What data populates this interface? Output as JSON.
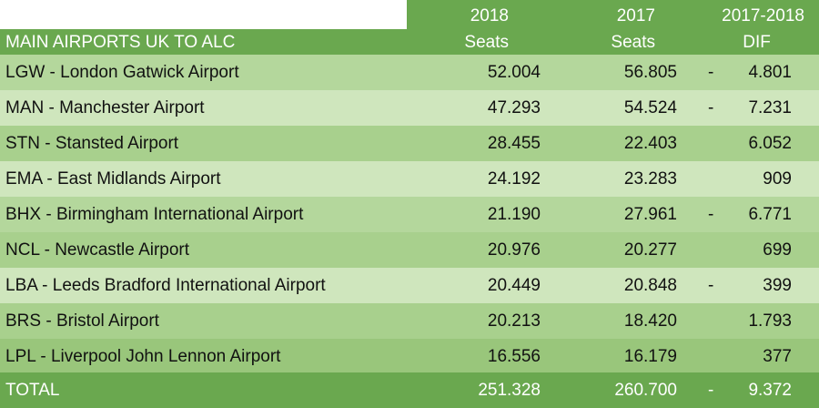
{
  "header": {
    "title": "MAIN AIRPORTS UK TO ALC",
    "col_2018": [
      "2018",
      "Seats"
    ],
    "col_2017": [
      "2017",
      "Seats"
    ],
    "col_dif": [
      "2017-2018",
      "DIF"
    ]
  },
  "rows": [
    {
      "airport": "LGW - London Gatwick Airport",
      "seats_2018": "52.004",
      "seats_2017": "56.805",
      "dash": "-",
      "dif": "4.801"
    },
    {
      "airport": "MAN - Manchester Airport",
      "seats_2018": "47.293",
      "seats_2017": "54.524",
      "dash": "-",
      "dif": "7.231"
    },
    {
      "airport": "STN - Stansted Airport",
      "seats_2018": "28.455",
      "seats_2017": "22.403",
      "dash": "",
      "dif": "6.052"
    },
    {
      "airport": "EMA - East Midlands Airport",
      "seats_2018": "24.192",
      "seats_2017": "23.283",
      "dash": "",
      "dif": "909"
    },
    {
      "airport": "BHX - Birmingham International Airport",
      "seats_2018": "21.190",
      "seats_2017": "27.961",
      "dash": "-",
      "dif": "6.771"
    },
    {
      "airport": "NCL - Newcastle Airport",
      "seats_2018": "20.976",
      "seats_2017": "20.277",
      "dash": "",
      "dif": "699"
    },
    {
      "airport": "LBA - Leeds Bradford International Airport",
      "seats_2018": "20.449",
      "seats_2017": "20.848",
      "dash": "-",
      "dif": "399"
    },
    {
      "airport": "BRS - Bristol Airport",
      "seats_2018": "20.213",
      "seats_2017": "18.420",
      "dash": "",
      "dif": "1.793"
    },
    {
      "airport": "LPL - Liverpool John Lennon Airport",
      "seats_2018": "16.556",
      "seats_2017": "16.179",
      "dash": "",
      "dif": "377"
    }
  ],
  "total": {
    "label": "TOTAL",
    "seats_2018": "251.328",
    "seats_2017": "260.700",
    "dash": "-",
    "dif": "9.372"
  },
  "colors": {
    "header_bg": "#6aa84f",
    "row_light": "#cfe6bd",
    "row_mid": "#b4d79c",
    "row_dark": "#a8d08d"
  }
}
